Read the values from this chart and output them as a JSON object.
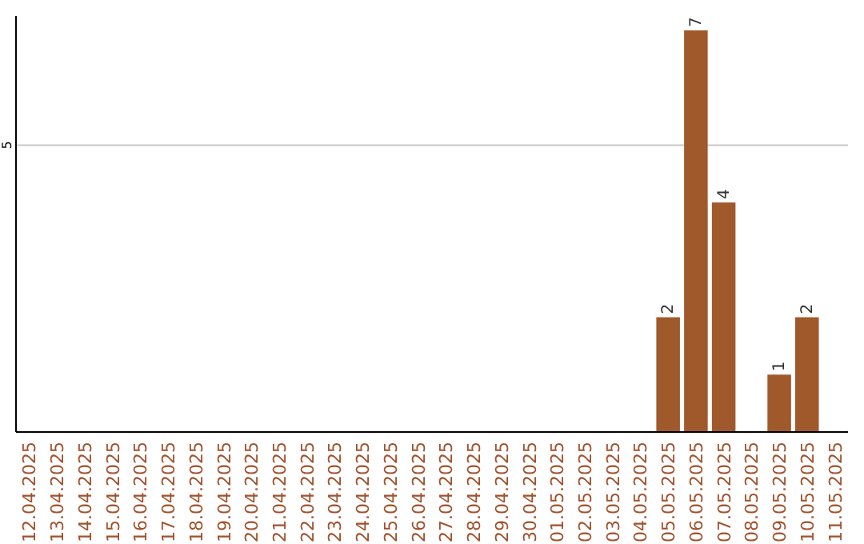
{
  "chart_data": {
    "type": "bar",
    "categories": [
      "12.04.2025",
      "13.04.2025",
      "14.04.2025",
      "15.04.2025",
      "16.04.2025",
      "17.04.2025",
      "18.04.2025",
      "19.04.2025",
      "20.04.2025",
      "21.04.2025",
      "22.04.2025",
      "23.04.2025",
      "24.04.2025",
      "25.04.2025",
      "26.04.2025",
      "27.04.2025",
      "28.04.2025",
      "29.04.2025",
      "30.04.2025",
      "01.05.2025",
      "02.05.2025",
      "03.05.2025",
      "04.05.2025",
      "05.05.2025",
      "06.05.2025",
      "07.05.2025",
      "08.05.2025",
      "09.05.2025",
      "10.05.2025",
      "11.05.2025"
    ],
    "values": [
      null,
      null,
      null,
      null,
      null,
      null,
      null,
      null,
      null,
      null,
      null,
      null,
      null,
      null,
      null,
      null,
      null,
      null,
      null,
      null,
      null,
      null,
      null,
      2,
      7,
      4,
      null,
      1,
      2,
      null
    ],
    "value_labels": [
      null,
      null,
      null,
      null,
      null,
      null,
      null,
      null,
      null,
      null,
      null,
      null,
      null,
      null,
      null,
      null,
      null,
      null,
      null,
      null,
      null,
      null,
      null,
      "2",
      "7",
      "4",
      null,
      "1",
      "2",
      null
    ],
    "color": "#a0592b",
    "ylim": [
      0,
      7.25
    ],
    "yticks": [
      5
    ],
    "grid": "y"
  }
}
